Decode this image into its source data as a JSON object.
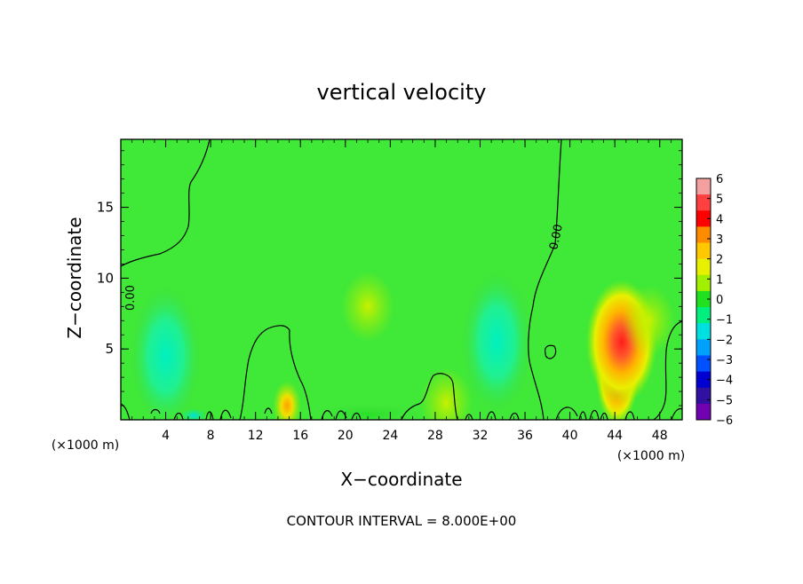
{
  "chart_data": {
    "type": "heatmap",
    "title": "vertical velocity",
    "xlabel": "X−coordinate",
    "ylabel": "Z−coordinate",
    "x_unit_label": "(×1000 m)",
    "xlim": [
      0,
      50
    ],
    "ylim": [
      0,
      19.8
    ],
    "x_ticks": [
      "4",
      "8",
      "12",
      "16",
      "20",
      "24",
      "28",
      "32",
      "36",
      "40",
      "44",
      "48"
    ],
    "x_tick_values": [
      4,
      8,
      12,
      16,
      20,
      24,
      28,
      32,
      36,
      40,
      44,
      48
    ],
    "y_ticks": [
      "5",
      "10",
      "15"
    ],
    "y_tick_values": [
      5,
      10,
      15
    ],
    "colorbar": {
      "labels": [
        "6",
        "5",
        "4",
        "3",
        "2",
        "1",
        "0",
        "−1",
        "−2",
        "−3",
        "−4",
        "−5",
        "−6"
      ],
      "values": [
        6,
        5,
        4,
        3,
        2,
        1,
        0,
        -1,
        -2,
        -3,
        -4,
        -5,
        -6
      ],
      "band_colors": [
        "#f5a0a0",
        "#ff4040",
        "#ff0000",
        "#ff8c00",
        "#ffc800",
        "#e6f000",
        "#a0f000",
        "#20e020",
        "#00f080",
        "#00e0e0",
        "#00a0ff",
        "#0050ff",
        "#0000d0",
        "#3010a0",
        "#7000b0"
      ]
    },
    "contour_labels": [
      "0.00",
      "0.00"
    ],
    "footer": "CONTOUR INTERVAL = 8.000E+00",
    "features": [
      {
        "x": 44.2,
        "z": 3.3,
        "value": 4.4
      },
      {
        "x": 44.6,
        "z": 5.5,
        "value": 2.6
      },
      {
        "x": 14.8,
        "z": 1.0,
        "value": 2.0
      },
      {
        "x": 29.0,
        "z": 1.2,
        "value": 1.3
      },
      {
        "x": 22.0,
        "z": 8.0,
        "value": 1.2
      },
      {
        "x": 4.0,
        "z": 4.5,
        "value": -1.7
      },
      {
        "x": 33.5,
        "z": 5.5,
        "value": -1.6
      },
      {
        "x": 6.5,
        "z": 0.3,
        "value": -1.5
      },
      {
        "x": 22.0,
        "z": 0.4,
        "value": -1.2
      },
      {
        "x": 47.0,
        "z": 7.0,
        "value": 1.3
      }
    ]
  }
}
